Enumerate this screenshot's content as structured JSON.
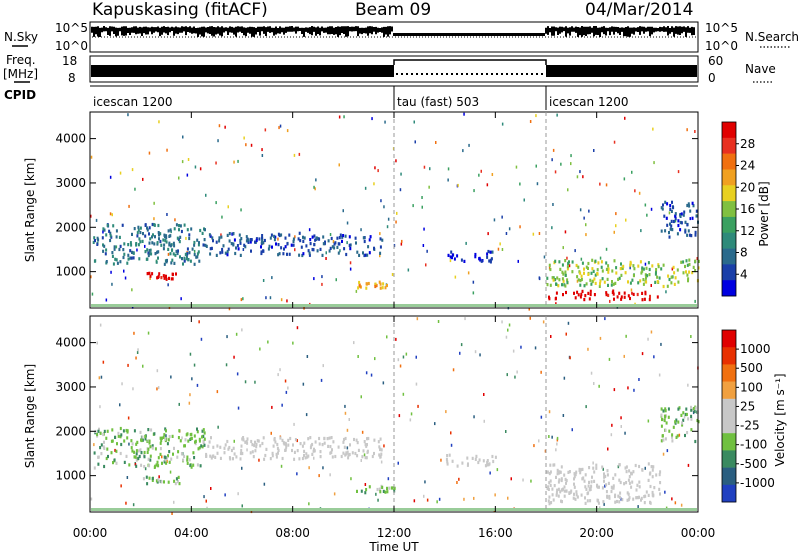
{
  "header": {
    "station": "Kapuskasing (fitACF)",
    "beam": "Beam 09",
    "date": "04/Mar/2014"
  },
  "strips": {
    "nsky_label": "N.Sky",
    "nsearch_label": "N.Search",
    "nsky_ticks": [
      "10^5",
      "10^0"
    ],
    "nsearch_ticks": [
      "10^5",
      "10^0"
    ],
    "freq_label_line1": "Freq.",
    "freq_label_line2": "[MHz]",
    "freq_ticks": [
      "18",
      "8"
    ],
    "nave_label": "Nave",
    "nave_ticks": [
      "60",
      "0"
    ],
    "cpid_label": "CPID",
    "modes": [
      {
        "name": "icescan 1200",
        "start": "00:00",
        "end": "12:00"
      },
      {
        "name": "tau (fast) 503",
        "start": "12:00",
        "end": "18:00"
      },
      {
        "name": "icescan 1200",
        "start": "18:00",
        "end": "00:00"
      }
    ]
  },
  "x_axis": {
    "label": "Time UT",
    "ticks": [
      "00:00",
      "04:00",
      "08:00",
      "12:00",
      "16:00",
      "20:00",
      "00:00"
    ]
  },
  "chart_data": [
    {
      "type": "heatmap",
      "name": "power",
      "ylabel": "Slant Range [km]",
      "yticks": [
        "1000",
        "2000",
        "3000",
        "4000"
      ],
      "ylim": [
        180,
        4600
      ],
      "xlim": [
        0,
        24
      ],
      "colorbar": {
        "label": "Power [dB]",
        "ticks": [
          "28",
          "24",
          "20",
          "16",
          "12",
          "8",
          "4"
        ],
        "colors": [
          "#0000e0",
          "#1a3fa8",
          "#2a6a8c",
          "#2e8a7a",
          "#3aa060",
          "#80c040",
          "#e8d020",
          "#f0a020",
          "#f07010",
          "#e83020",
          "#e00000"
        ]
      },
      "features": [
        {
          "start": 0.1,
          "end": 4.5,
          "range": [
            1200,
            2100
          ],
          "value": 10
        },
        {
          "start": 2.0,
          "end": 3.5,
          "range": [
            850,
            1000
          ],
          "value": 28
        },
        {
          "start": 4.5,
          "end": 11.5,
          "range": [
            1400,
            1900
          ],
          "value": 8
        },
        {
          "start": 10.5,
          "end": 12.0,
          "range": [
            650,
            800
          ],
          "value": 20
        },
        {
          "start": 14.0,
          "end": 16.0,
          "range": [
            1250,
            1500
          ],
          "value": 6
        },
        {
          "start": 18.0,
          "end": 22.5,
          "range": [
            400,
            600
          ],
          "value": 28
        },
        {
          "start": 18.0,
          "end": 24.0,
          "range": [
            700,
            1300
          ],
          "value": 16
        },
        {
          "start": 22.5,
          "end": 24.0,
          "range": [
            1800,
            2600
          ],
          "value": 8
        }
      ]
    },
    {
      "type": "heatmap",
      "name": "velocity",
      "ylabel": "Slant Range [km]",
      "yticks": [
        "1000",
        "2000",
        "3000",
        "4000"
      ],
      "ylim": [
        180,
        4600
      ],
      "xlim": [
        0,
        24
      ],
      "colorbar": {
        "label": "Velocity [m s⁻¹]",
        "ticks": [
          "1000",
          "500",
          "100",
          "25",
          "-25",
          "-100",
          "-500",
          "-1000"
        ],
        "colors": [
          "#2040c0",
          "#2a5e80",
          "#3a8a60",
          "#70c040",
          "#c8c8c8",
          "#c8c8c8",
          "#f0a040",
          "#f07010",
          "#e83000",
          "#e00000"
        ]
      },
      "features": [
        {
          "start": 0.1,
          "end": 4.5,
          "range": [
            1200,
            2100
          ],
          "value": -300
        },
        {
          "start": 2.0,
          "end": 3.5,
          "range": [
            850,
            1000
          ],
          "value": -300
        },
        {
          "start": 4.5,
          "end": 11.5,
          "range": [
            1400,
            1900
          ],
          "value": 0
        },
        {
          "start": 10.5,
          "end": 12.0,
          "range": [
            650,
            800
          ],
          "value": -300
        },
        {
          "start": 14.0,
          "end": 16.0,
          "range": [
            1250,
            1500
          ],
          "value": 0
        },
        {
          "start": 18.0,
          "end": 22.5,
          "range": [
            400,
            1300
          ],
          "value": 0
        },
        {
          "start": 22.5,
          "end": 24.0,
          "range": [
            1800,
            2600
          ],
          "value": -300
        }
      ]
    }
  ]
}
